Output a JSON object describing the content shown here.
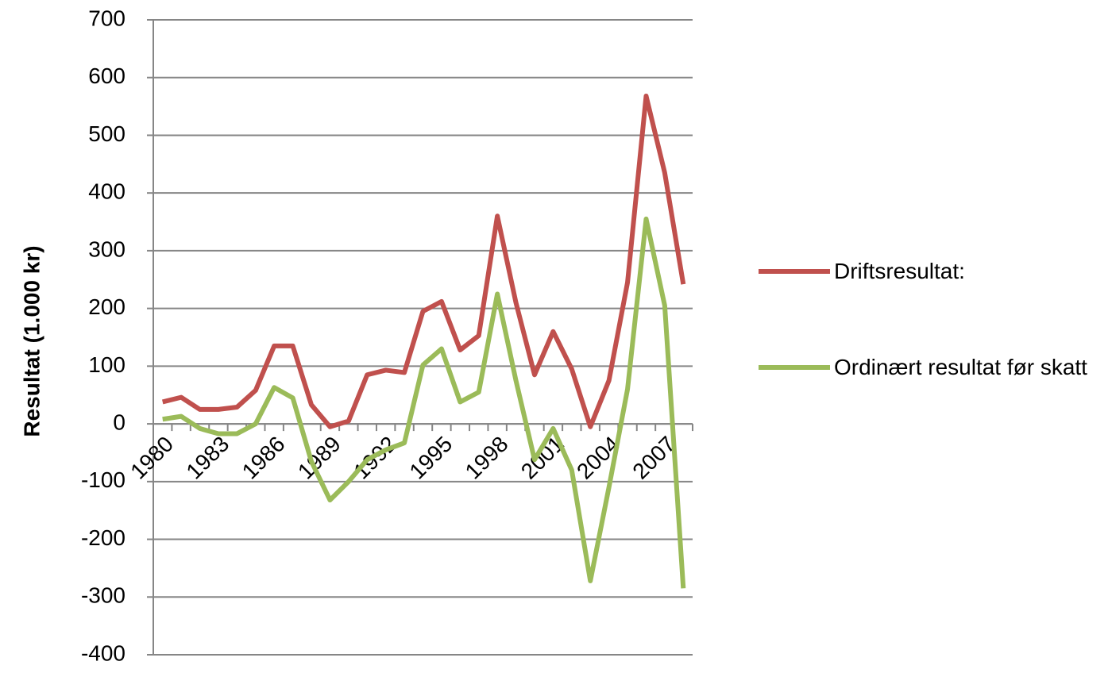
{
  "chart_data": {
    "type": "line",
    "y_label": "Resultat (1.000 kr)",
    "categories": [
      "1980",
      null,
      null,
      "1983",
      null,
      null,
      "1986",
      null,
      null,
      "1989",
      null,
      null,
      "1992",
      null,
      null,
      "1995",
      null,
      null,
      "1998",
      null,
      null,
      "2001",
      null,
      null,
      "2004",
      null,
      null,
      "2007",
      null
    ],
    "series": [
      {
        "name": "Driftsresultat:",
        "color": "#c0504d",
        "values": [
          38,
          46,
          25,
          25,
          29,
          58,
          135,
          135,
          33,
          -5,
          5,
          85,
          93,
          89,
          195,
          212,
          128,
          153,
          360,
          210,
          85,
          160,
          95,
          -5,
          75,
          245,
          568,
          435,
          242
        ]
      },
      {
        "name": "Ordinært resultat før skatt",
        "color": "#9bbb59",
        "values": [
          8,
          13,
          -8,
          -17,
          -17,
          0,
          63,
          45,
          -65,
          -132,
          -100,
          -62,
          -45,
          -33,
          102,
          130,
          38,
          55,
          225,
          75,
          -62,
          -8,
          -80,
          -272,
          -110,
          60,
          355,
          205,
          -285
        ]
      }
    ],
    "ylim": [
      -400,
      700
    ],
    "yticks": [
      -400,
      -300,
      -200,
      -100,
      0,
      100,
      200,
      300,
      400,
      500,
      600,
      700
    ],
    "grid": true,
    "legend": "right"
  }
}
